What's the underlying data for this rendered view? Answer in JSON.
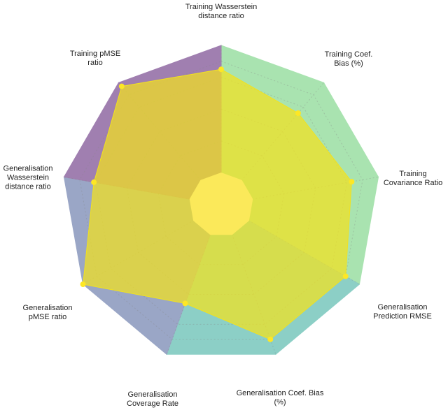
{
  "chart_data": {
    "type": "radar",
    "categories": [
      "Training Wasserstein distance ratio",
      "Training Coef. Bias (%)",
      "Training Covariance Ratio",
      "Generalisation Prediction RMSE",
      "Generalisation Coef. Bias (%)",
      "Generalisation Coverage Rate",
      "Generalisation pMSE ratio",
      "Generalisation Wasserstein distance ratio",
      "Training pMSE ratio"
    ],
    "values": [
      0.85,
      0.75,
      0.83,
      0.9,
      0.9,
      0.66,
      1.0,
      0.81,
      0.97
    ],
    "ylim": [
      0,
      1
    ],
    "color": "#f2e21e",
    "marker_color": "#fde725"
  }
}
